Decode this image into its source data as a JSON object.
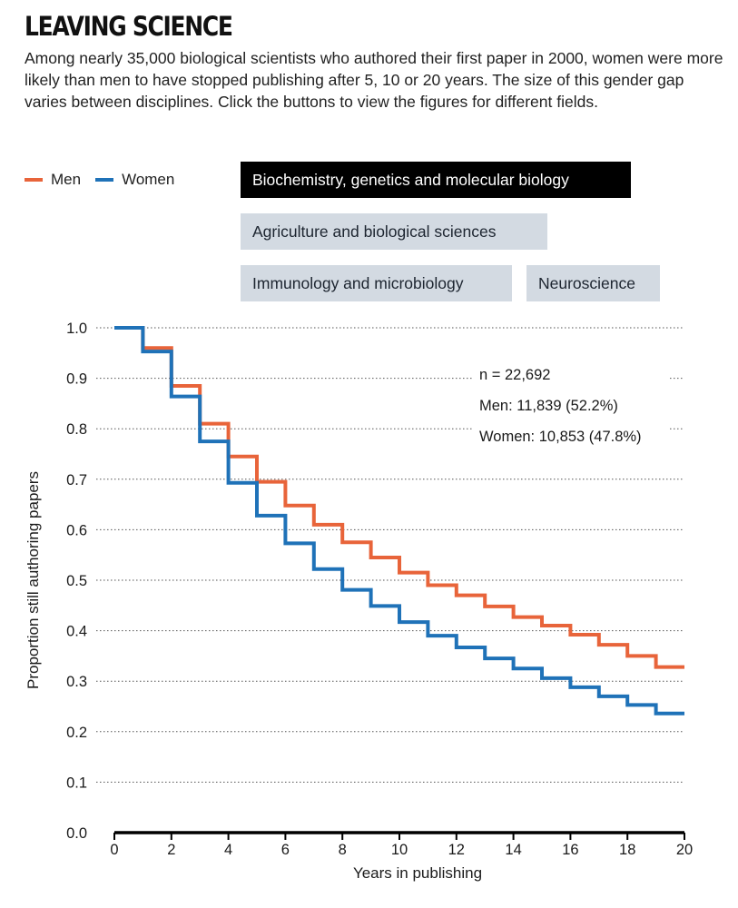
{
  "header": {
    "title": "LEAVING SCIENCE",
    "description": "Among nearly 35,000 biological scientists who authored their first paper in 2000, women were more likely than men to have stopped publishing after 5, 10 or 20 years. The size of this gender gap varies between disciplines. Click the buttons to view the figures for different fields."
  },
  "legend": {
    "men_label": "Men",
    "women_label": "Women"
  },
  "buttons": [
    {
      "label": "Biochemistry, genetics and molecular biology",
      "active": true
    },
    {
      "label": "Agriculture and biological sciences",
      "active": false
    },
    {
      "label": "Immunology and microbiology",
      "active": false
    },
    {
      "label": "Neuroscience",
      "active": false
    }
  ],
  "annotation": {
    "n": "n = 22,692",
    "men": "Men: 11,839 (52.2%)",
    "women": "Women: 10,853 (47.8%)"
  },
  "colors": {
    "men": "#e8643a",
    "women": "#1f72b8",
    "active_button": "#000000",
    "inactive_button": "#d3dae2"
  },
  "chart_data": {
    "type": "line",
    "step": true,
    "xlabel": "Years in publishing",
    "ylabel": "Proportion still authoring papers",
    "xlim": [
      0,
      20
    ],
    "ylim": [
      0,
      1.0
    ],
    "x_ticks": [
      "0",
      "2",
      "4",
      "6",
      "8",
      "10",
      "12",
      "14",
      "16",
      "18",
      "20"
    ],
    "y_ticks": [
      "0.0",
      "0.1",
      "0.2",
      "0.3",
      "0.4",
      "0.5",
      "0.6",
      "0.7",
      "0.8",
      "0.9",
      "1.0"
    ],
    "x": [
      0,
      1,
      2,
      3,
      4,
      5,
      6,
      7,
      8,
      9,
      10,
      11,
      12,
      13,
      14,
      15,
      16,
      17,
      18,
      19,
      20
    ],
    "series": [
      {
        "name": "Men",
        "color": "#e8643a",
        "values": [
          1.0,
          0.96,
          0.885,
          0.81,
          0.745,
          0.695,
          0.648,
          0.61,
          0.575,
          0.545,
          0.515,
          0.49,
          0.47,
          0.448,
          0.427,
          0.41,
          0.392,
          0.372,
          0.35,
          0.328,
          0.328
        ]
      },
      {
        "name": "Women",
        "color": "#1f72b8",
        "values": [
          1.0,
          0.953,
          0.864,
          0.775,
          0.693,
          0.628,
          0.573,
          0.522,
          0.481,
          0.449,
          0.417,
          0.39,
          0.367,
          0.345,
          0.325,
          0.306,
          0.288,
          0.27,
          0.253,
          0.236,
          0.236
        ]
      }
    ]
  }
}
